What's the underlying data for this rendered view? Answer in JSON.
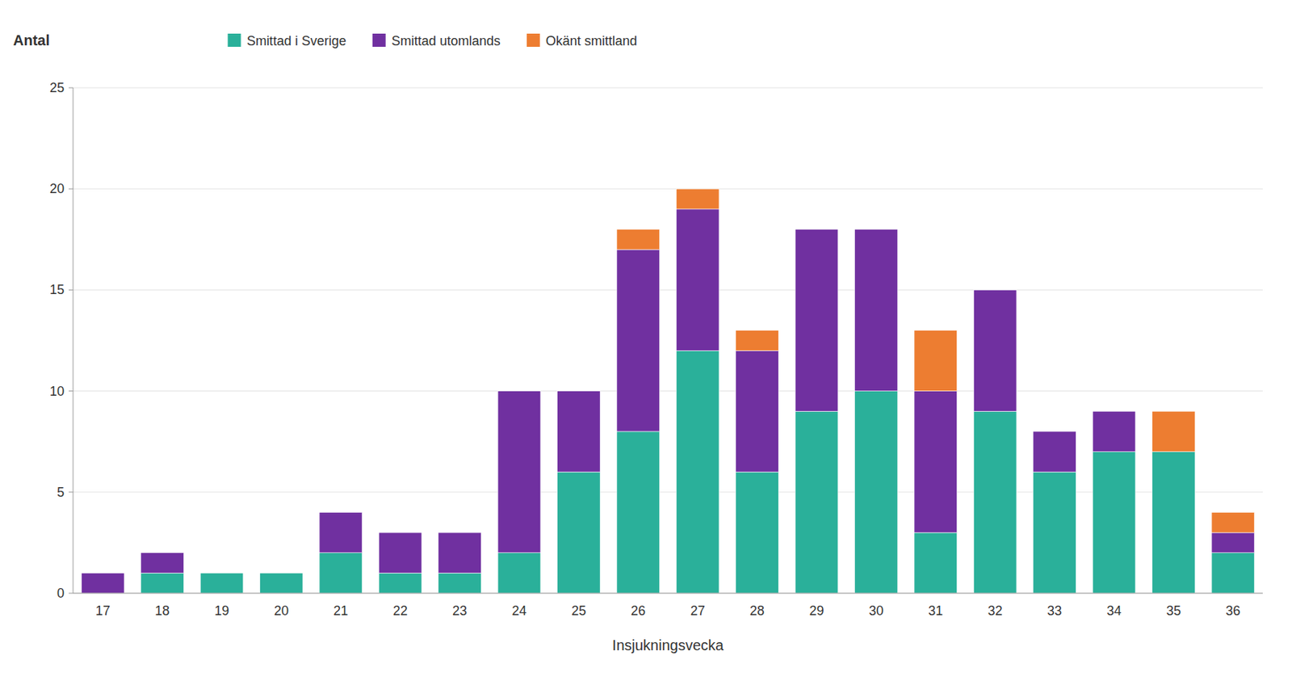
{
  "chart_data": {
    "type": "bar",
    "stacked": true,
    "y_label": "Antal",
    "x_label": "Insjukningsvecka",
    "categories": [
      17,
      18,
      19,
      20,
      21,
      22,
      23,
      24,
      25,
      26,
      27,
      28,
      29,
      30,
      31,
      32,
      33,
      34,
      35,
      36
    ],
    "series": [
      {
        "name": "Smittad i Sverige",
        "color": "#2ab09a",
        "values": [
          0,
          1,
          1,
          1,
          2,
          1,
          1,
          2,
          6,
          8,
          12,
          6,
          9,
          10,
          3,
          9,
          6,
          7,
          7,
          2
        ]
      },
      {
        "name": "Smittad utomlands",
        "color": "#7030a0",
        "values": [
          1,
          1,
          0,
          0,
          2,
          2,
          2,
          8,
          4,
          9,
          7,
          6,
          9,
          8,
          7,
          6,
          2,
          2,
          0,
          1
        ]
      },
      {
        "name": "Okänt smittland",
        "color": "#ed7d31",
        "values": [
          0,
          0,
          0,
          0,
          0,
          0,
          0,
          0,
          0,
          1,
          1,
          1,
          0,
          0,
          3,
          0,
          0,
          0,
          2,
          1
        ]
      }
    ],
    "ylim": [
      0,
      25
    ],
    "yticks": [
      0,
      5,
      10,
      15,
      20,
      25
    ],
    "grid": true,
    "legend": "top"
  }
}
